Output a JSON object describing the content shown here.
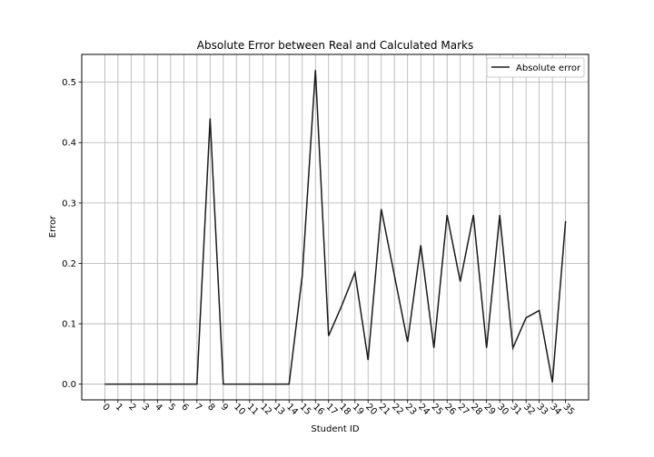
{
  "chart_data": {
    "type": "line",
    "title": "Absolute Error between Real and Calculated Marks",
    "xlabel": "Student ID",
    "ylabel": "Error",
    "x": [
      0,
      1,
      2,
      3,
      4,
      5,
      6,
      7,
      8,
      9,
      10,
      11,
      12,
      13,
      14,
      15,
      16,
      17,
      18,
      19,
      20,
      21,
      22,
      23,
      24,
      25,
      26,
      27,
      28,
      29,
      30,
      31,
      32,
      33,
      34,
      35
    ],
    "xticks": [
      "0",
      "1",
      "2",
      "3",
      "4",
      "5",
      "6",
      "7",
      "8",
      "9",
      "10",
      "11",
      "12",
      "13",
      "14",
      "15",
      "16",
      "17",
      "18",
      "19",
      "20",
      "21",
      "22",
      "23",
      "24",
      "25",
      "26",
      "27",
      "28",
      "29",
      "30",
      "31",
      "32",
      "33",
      "34",
      "35"
    ],
    "yticks": [
      "0.0",
      "0.1",
      "0.2",
      "0.3",
      "0.4",
      "0.5"
    ],
    "ylim": [
      -0.026,
      0.546
    ],
    "xlim": [
      -1.75,
      36.75
    ],
    "grid": true,
    "legend_position": "top-right",
    "series": [
      {
        "name": "Absolute error",
        "color": "#1a1a1a",
        "values": [
          0,
          0,
          0,
          0,
          0,
          0,
          0,
          0,
          0.44,
          0,
          0,
          0,
          0,
          0,
          0,
          0.18,
          0.52,
          0.08,
          0.13,
          0.185,
          0.04,
          0.29,
          0.18,
          0.07,
          0.23,
          0.06,
          0.28,
          0.17,
          0.28,
          0.06,
          0.28,
          0.06,
          0.11,
          0.122,
          0.003,
          0.27
        ]
      }
    ]
  }
}
